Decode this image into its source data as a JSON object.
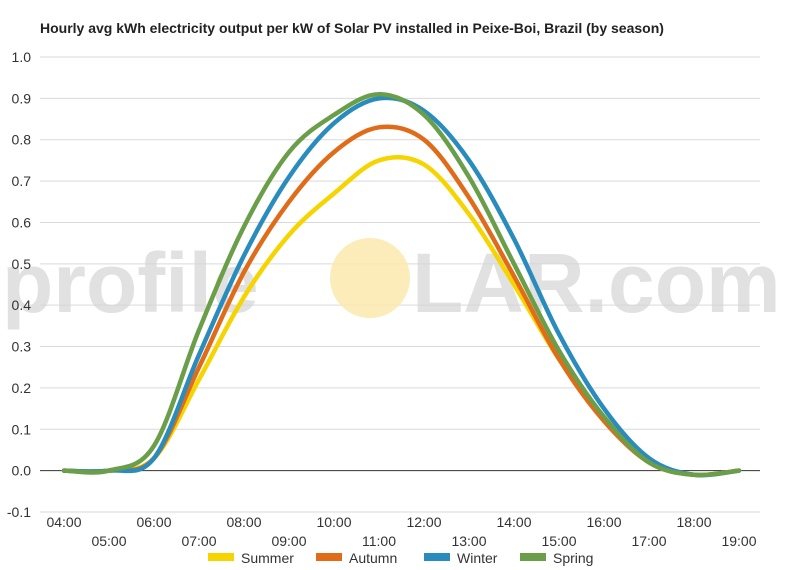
{
  "watermark": {
    "left": "profile",
    "right": "LAR.com"
  },
  "chart_data": {
    "type": "line",
    "title": "Hourly avg kWh electricity output per kW of Solar PV installed in Peixe-Boi, Brazil (by season)",
    "xlabel": "",
    "ylabel": "",
    "x": [
      "04:00",
      "05:00",
      "06:00",
      "07:00",
      "08:00",
      "09:00",
      "10:00",
      "11:00",
      "12:00",
      "13:00",
      "14:00",
      "15:00",
      "16:00",
      "17:00",
      "18:00",
      "19:00"
    ],
    "yticks": [
      "1.0",
      "0.9",
      "0.8",
      "0.7",
      "0.6",
      "0.5",
      "0.4",
      "0.3",
      "0.2",
      "0.1",
      "0.0",
      "-0.1"
    ],
    "ylim": [
      -0.1,
      1.0
    ],
    "grid": true,
    "legend_position": "bottom",
    "series": [
      {
        "name": "Summer",
        "color": "#f5d400",
        "values": [
          0.0,
          0.0,
          0.03,
          0.22,
          0.42,
          0.57,
          0.67,
          0.75,
          0.74,
          0.62,
          0.45,
          0.27,
          0.13,
          0.02,
          -0.01,
          0.0
        ]
      },
      {
        "name": "Autumn",
        "color": "#e06c1a",
        "values": [
          0.0,
          0.0,
          0.03,
          0.25,
          0.48,
          0.65,
          0.77,
          0.83,
          0.8,
          0.66,
          0.47,
          0.27,
          0.12,
          0.02,
          -0.01,
          0.0
        ]
      },
      {
        "name": "Winter",
        "color": "#2a8cbd",
        "values": [
          0.0,
          0.0,
          0.03,
          0.28,
          0.52,
          0.71,
          0.84,
          0.9,
          0.87,
          0.75,
          0.56,
          0.33,
          0.15,
          0.03,
          -0.01,
          0.0
        ]
      },
      {
        "name": "Spring",
        "color": "#6a9e48",
        "values": [
          0.0,
          0.0,
          0.06,
          0.34,
          0.59,
          0.77,
          0.86,
          0.91,
          0.86,
          0.71,
          0.5,
          0.29,
          0.13,
          0.02,
          -0.01,
          0.0
        ]
      }
    ]
  }
}
